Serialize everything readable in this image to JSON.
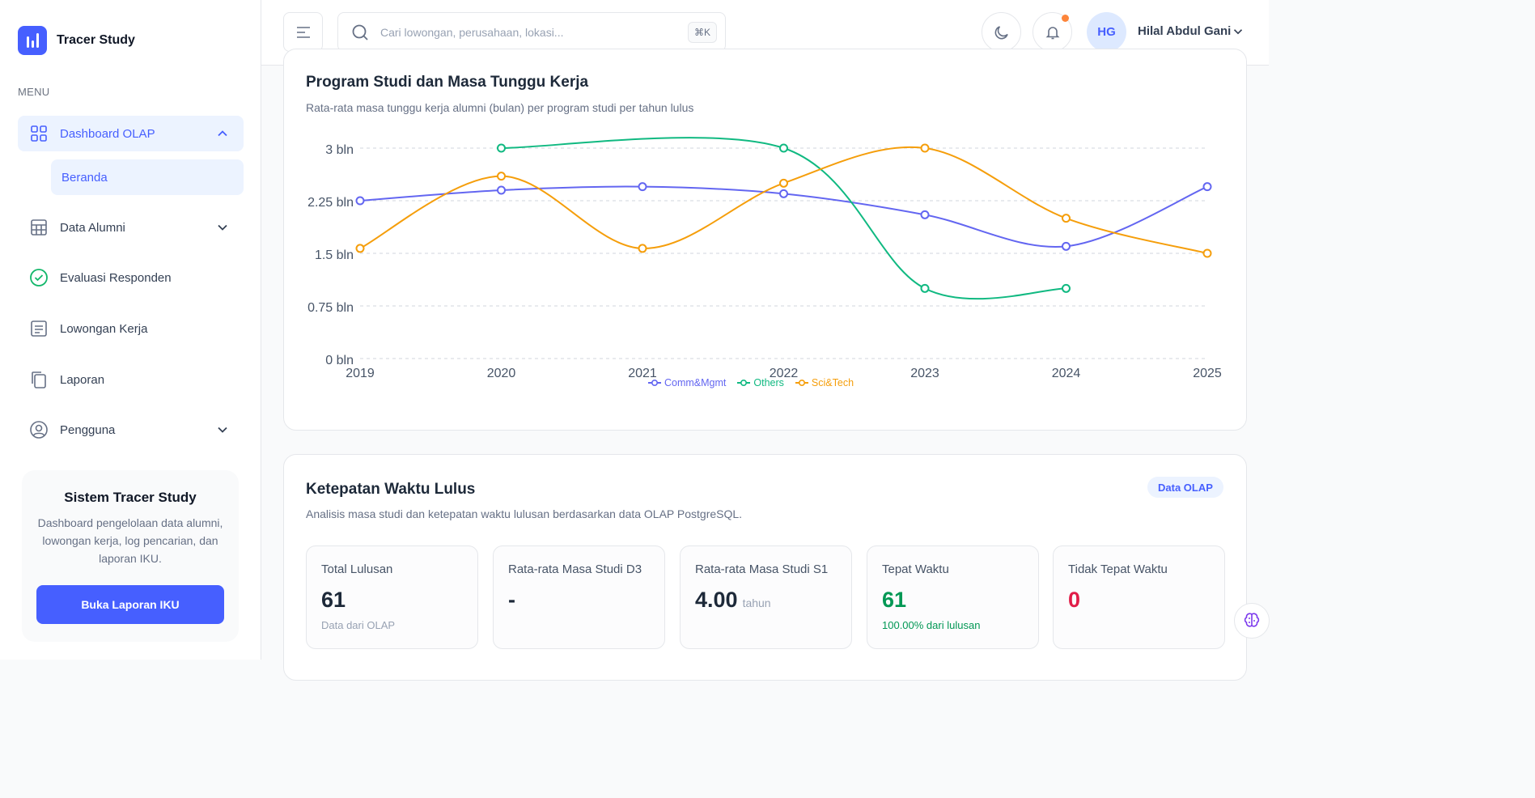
{
  "brand": {
    "name": "Tracer Study"
  },
  "sidebar": {
    "menu_label": "MENU",
    "items": [
      {
        "label": "Dashboard OLAP"
      },
      {
        "label": "Beranda"
      },
      {
        "label": "Data Alumni"
      },
      {
        "label": "Evaluasi Responden"
      },
      {
        "label": "Lowongan Kerja"
      },
      {
        "label": "Laporan"
      },
      {
        "label": "Pengguna"
      }
    ],
    "promo": {
      "title": "Sistem Tracer Study",
      "text": "Dashboard pengelolaan data alumni, lowongan kerja, log pencarian, dan laporan IKU.",
      "button": "Buka Laporan IKU"
    }
  },
  "header": {
    "search_placeholder": "Cari lowongan, perusahaan, lokasi...",
    "shortcut": "⌘K",
    "user_initials": "HG",
    "user_name": "Hilal Abdul Gani"
  },
  "chart_card": {
    "title": "Program Studi dan Masa Tunggu Kerja",
    "subtitle": "Rata-rata masa tunggu kerja alumni (bulan) per program studi per tahun lulus"
  },
  "chart_data": {
    "type": "line",
    "x": [
      "2019",
      "2020",
      "2021",
      "2022",
      "2023",
      "2024",
      "2025"
    ],
    "y_ticks": [
      "3 bln",
      "2.25 bln",
      "1.5 bln",
      "0.75 bln",
      "0 bln"
    ],
    "ylim": [
      0,
      3
    ],
    "grid": true,
    "legend_position": "bottom",
    "series": [
      {
        "name": "Comm&Mgmt",
        "color": "#6366f1",
        "values": [
          2.25,
          2.4,
          2.45,
          2.35,
          2.05,
          1.6,
          2.45
        ]
      },
      {
        "name": "Others",
        "color": "#10b981",
        "values": [
          null,
          3.0,
          null,
          3.0,
          1.0,
          1.0,
          null
        ]
      },
      {
        "name": "Sci&Tech",
        "color": "#f59e0b",
        "values": [
          1.57,
          2.6,
          1.57,
          2.5,
          3.0,
          2.0,
          1.5
        ]
      }
    ]
  },
  "grad_card": {
    "title": "Ketepatan Waktu Lulus",
    "subtitle": "Analisis masa studi dan ketepatan waktu lulusan berdasarkan data OLAP PostgreSQL.",
    "badge": "Data OLAP",
    "stats": [
      {
        "label": "Total Lulusan",
        "value": "61",
        "unit": "",
        "note": "Data dari OLAP",
        "color": "#1d2939",
        "note_color": "#98a2b3"
      },
      {
        "label": "Rata-rata Masa Studi D3",
        "value": "-",
        "unit": "",
        "note": "",
        "color": "#1d2939",
        "note_color": "#98a2b3"
      },
      {
        "label": "Rata-rata Masa Studi S1",
        "value": "4.00",
        "unit": "tahun",
        "note": "",
        "color": "#1d2939",
        "note_color": "#98a2b3"
      },
      {
        "label": "Tepat Waktu",
        "value": "61",
        "unit": "",
        "note": "100.00% dari lulusan",
        "color": "#039855",
        "note_color": "#039855"
      },
      {
        "label": "Tidak Tepat Waktu",
        "value": "0",
        "unit": "",
        "note": "",
        "color": "#e11d48",
        "note_color": "#98a2b3"
      }
    ]
  }
}
